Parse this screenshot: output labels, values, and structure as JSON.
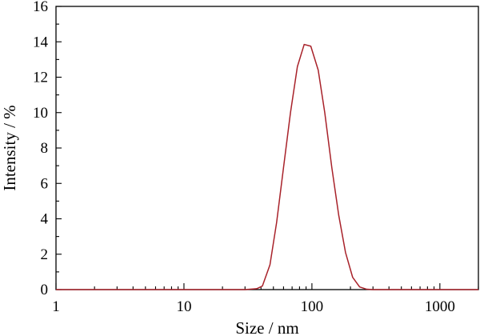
{
  "chart_data": {
    "type": "line",
    "title": "",
    "xlabel": "Size / nm",
    "ylabel": "Intensity / %",
    "xscale": "log",
    "xlim": [
      1,
      2000
    ],
    "ylim": [
      0,
      16
    ],
    "xticks": [
      1,
      10,
      100,
      1000
    ],
    "xtick_labels": [
      "1",
      "10",
      "100",
      "1000"
    ],
    "yticks": [
      0,
      2,
      4,
      6,
      8,
      10,
      12,
      14,
      16
    ],
    "ytick_labels": [
      "0",
      "2",
      "4",
      "6",
      "8",
      "10",
      "12",
      "14",
      "16"
    ],
    "grid": false,
    "legend": "none",
    "series": [
      {
        "color": "#a8222a",
        "x": [
          1,
          30,
          37,
          41,
          47,
          53,
          60,
          68,
          77,
          87,
          98,
          112,
          126,
          143,
          162,
          183,
          208,
          236,
          268,
          300,
          2000
        ],
        "y": [
          0,
          0,
          0.05,
          0.2,
          1.4,
          3.8,
          6.9,
          10.0,
          12.6,
          13.85,
          13.75,
          12.4,
          10.0,
          6.9,
          4.2,
          2.1,
          0.7,
          0.15,
          0.02,
          0,
          0
        ]
      }
    ]
  }
}
